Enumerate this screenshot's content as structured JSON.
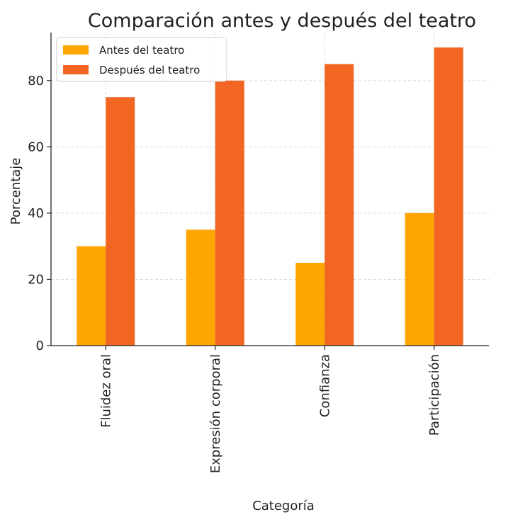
{
  "chart_data": {
    "type": "bar",
    "title": "Comparación antes y después del teatro",
    "xlabel": "Categoría",
    "ylabel": "Porcentaje",
    "categories": [
      "Fluidez oral",
      "Expresión corporal",
      "Confianza",
      "Participación"
    ],
    "series": [
      {
        "name": "Antes del teatro",
        "values": [
          30,
          35,
          25,
          40
        ],
        "color": "#FFA500"
      },
      {
        "name": "Después del teatro",
        "values": [
          75,
          80,
          85,
          90
        ],
        "color": "#F26522"
      }
    ],
    "ylim": [
      0,
      94.5
    ],
    "yticks": [
      0,
      20,
      40,
      60,
      80
    ],
    "grid": true,
    "legend_position": "top-left"
  }
}
